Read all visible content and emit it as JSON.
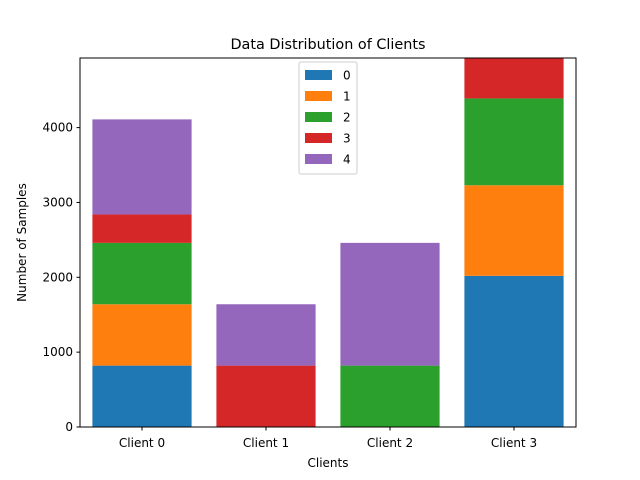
{
  "chart_data": {
    "type": "bar",
    "stacked": true,
    "title": "Data Distribution of Clients",
    "xlabel": "Clients",
    "ylabel": "Number of Samples",
    "categories": [
      "Client 0",
      "Client 1",
      "Client 2",
      "Client 3"
    ],
    "yticks": [
      0,
      1000,
      2000,
      3000,
      4000
    ],
    "ylim": [
      0,
      4930
    ],
    "legend_position": "upper center",
    "series": [
      {
        "name": "0",
        "color": "#1f77b4",
        "values": [
          820,
          0,
          0,
          2020
        ]
      },
      {
        "name": "1",
        "color": "#ff7f0e",
        "values": [
          820,
          0,
          0,
          1210
        ]
      },
      {
        "name": "2",
        "color": "#2ca02c",
        "values": [
          820,
          0,
          820,
          1160
        ]
      },
      {
        "name": "3",
        "color": "#d62728",
        "values": [
          380,
          820,
          0,
          540
        ]
      },
      {
        "name": "4",
        "color": "#9467bd",
        "values": [
          1270,
          820,
          1640,
          0
        ]
      }
    ]
  }
}
